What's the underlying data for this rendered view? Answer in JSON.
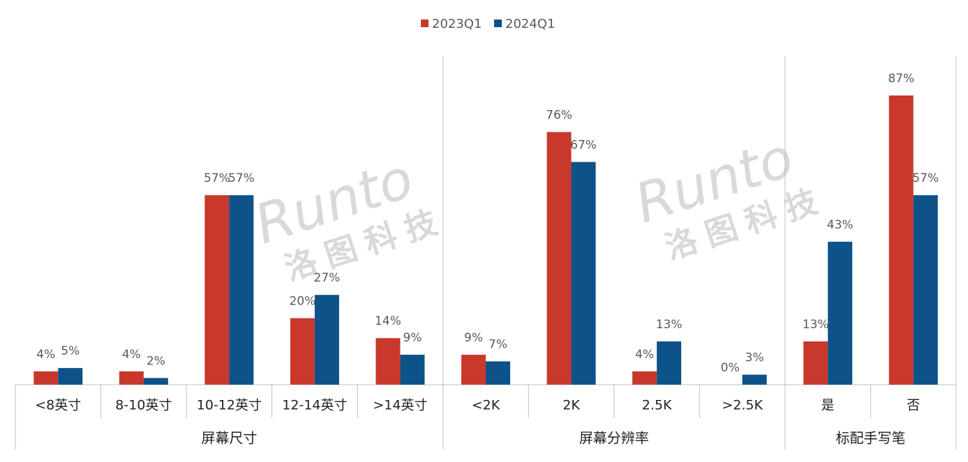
{
  "chart_data": {
    "type": "bar",
    "watermark": {
      "logo": "Runto",
      "text": "洛图科技"
    },
    "groups": [
      {
        "name": "屏幕尺寸",
        "categories": [
          "<8英寸",
          "8-10英寸",
          "10-12英寸",
          "12-14英寸",
          ">14英寸"
        ]
      },
      {
        "name": "屏幕分辨率",
        "categories": [
          "<2K",
          "2K",
          "2.5K",
          ">2.5K"
        ]
      },
      {
        "name": "标配手写笔",
        "categories": [
          "是",
          "否"
        ]
      }
    ],
    "series": [
      {
        "name": "2023Q1",
        "color": "#c8392b",
        "values": [
          4,
          4,
          57,
          20,
          14,
          9,
          76,
          4,
          0,
          13,
          87
        ],
        "value_labels": [
          "4%",
          "4%",
          "57%",
          "20%",
          "14%",
          "9%",
          "76%",
          "4%",
          "0%",
          "13%",
          "87%"
        ]
      },
      {
        "name": "2024Q1",
        "color": "#0d5289",
        "values": [
          5,
          2,
          57,
          27,
          9,
          7,
          67,
          13,
          3,
          43,
          57
        ],
        "value_labels": [
          "5%",
          "2%",
          "57%",
          "27%",
          "9%",
          "7%",
          "67%",
          "13%",
          "3%",
          "43%",
          "57%"
        ]
      }
    ]
  }
}
